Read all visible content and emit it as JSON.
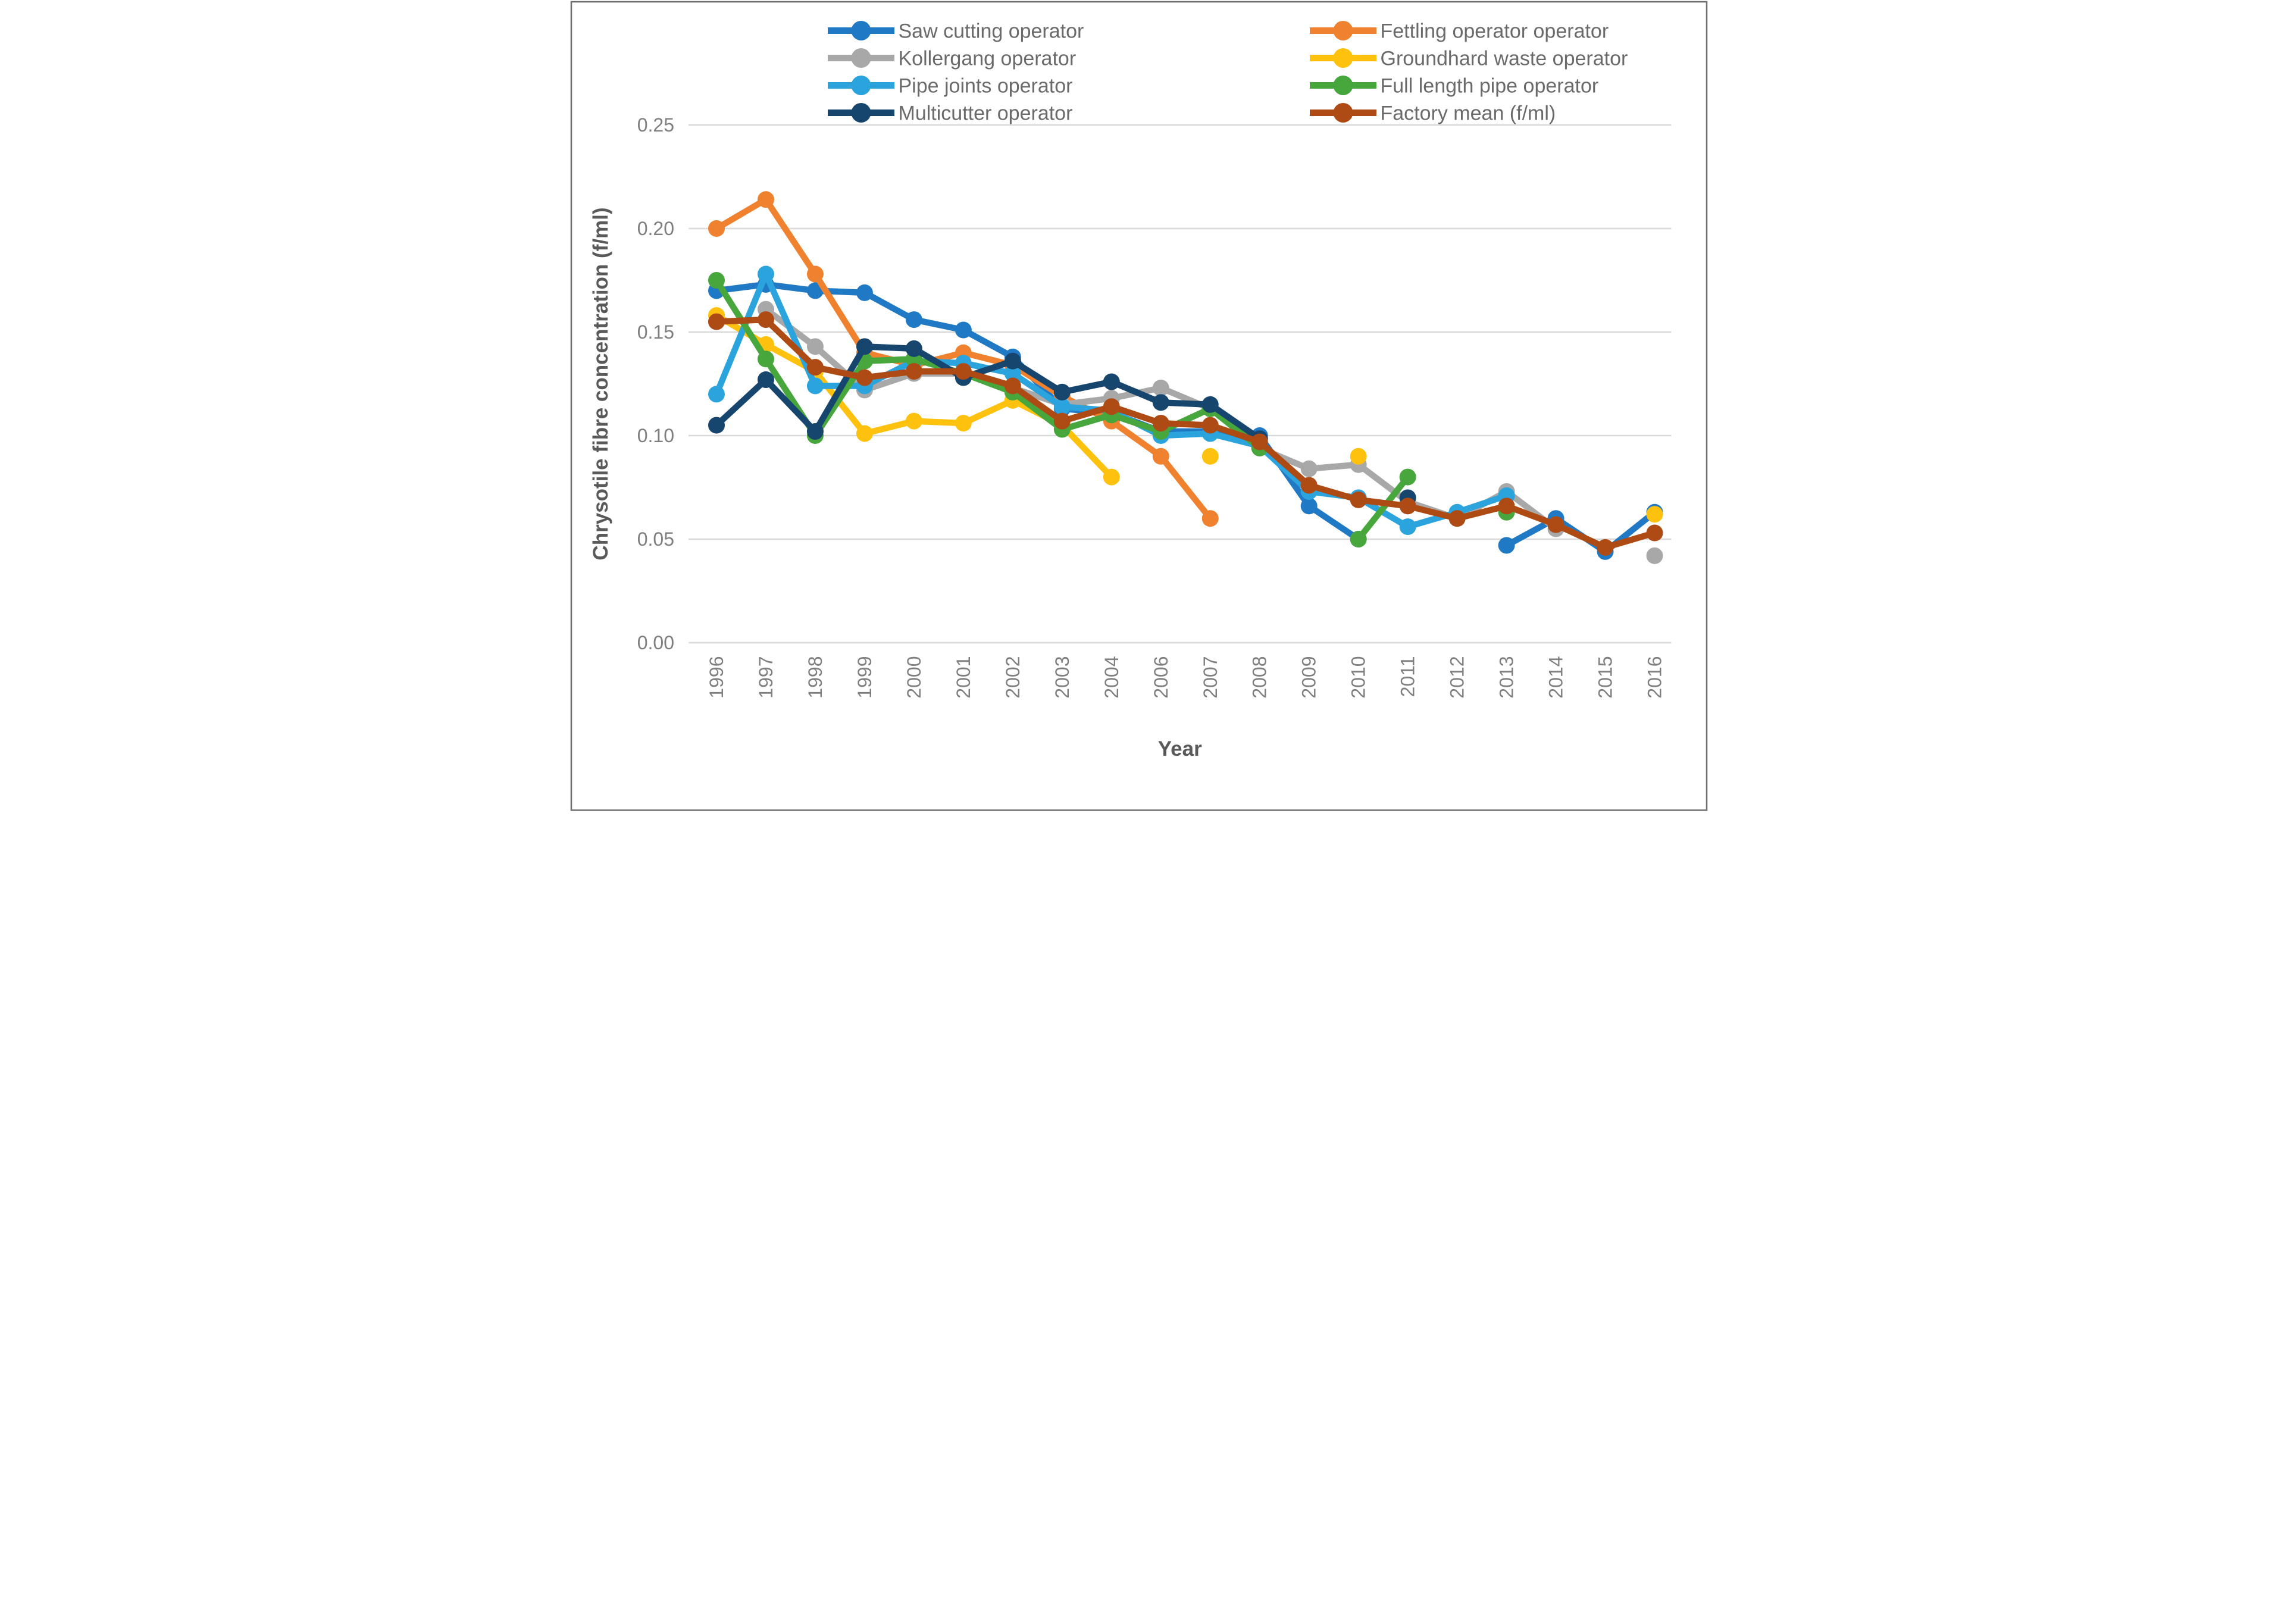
{
  "chart_data": {
    "type": "line",
    "title": "",
    "xlabel": "Year",
    "ylabel": "Chrysotile fibre concentration (f/ml)",
    "ylim": [
      0,
      0.25
    ],
    "ytick_labels": [
      "0.00",
      "0.05",
      "0.10",
      "0.15",
      "0.20",
      "0.25"
    ],
    "ytick_values": [
      0,
      0.05,
      0.1,
      0.15,
      0.2,
      0.25
    ],
    "grid": "horizontal",
    "legend_position": "top, two columns",
    "categories": [
      "1996",
      "1997",
      "1998",
      "1999",
      "2000",
      "2001",
      "2002",
      "2003",
      "2004",
      "2006",
      "2007",
      "2008",
      "2009",
      "2010",
      "2011",
      "2012",
      "2013",
      "2014",
      "2015",
      "2016"
    ],
    "series": [
      {
        "name": "Saw cutting operator",
        "key": "saw-cutting-operator",
        "color": "#2079C5",
        "values": [
          0.17,
          0.173,
          0.17,
          0.169,
          0.156,
          0.151,
          0.138,
          0.113,
          0.111,
          0.102,
          0.102,
          0.1,
          0.066,
          0.05,
          null,
          null,
          0.047,
          0.06,
          0.044,
          0.063
        ]
      },
      {
        "name": "Fettling operator operator",
        "key": "fettling-operator",
        "color": "#F0812E",
        "values": [
          0.2,
          0.214,
          0.178,
          0.14,
          0.134,
          0.14,
          0.134,
          0.119,
          0.107,
          0.09,
          0.06,
          null,
          null,
          null,
          null,
          null,
          null,
          null,
          null,
          null
        ]
      },
      {
        "name": "Kollergang operator",
        "key": "kollergang-operator",
        "color": "#A8A8A8",
        "values": [
          null,
          0.161,
          0.143,
          0.122,
          0.13,
          0.13,
          0.123,
          0.115,
          0.118,
          0.123,
          0.113,
          0.094,
          0.084,
          0.086,
          0.068,
          0.06,
          0.073,
          0.055,
          null,
          0.042
        ]
      },
      {
        "name": "Groundhard waste operator",
        "key": "groundhard-waste-operator",
        "color": "#FEC10D",
        "values": [
          0.158,
          0.144,
          0.131,
          0.101,
          0.107,
          0.106,
          0.117,
          0.105,
          0.08,
          null,
          0.09,
          null,
          null,
          0.09,
          null,
          null,
          null,
          null,
          null,
          0.062
        ]
      },
      {
        "name": "Pipe joints operator",
        "key": "pipe-joints-operator",
        "color": "#2BA3DC",
        "values": [
          0.12,
          0.178,
          0.124,
          0.124,
          0.136,
          0.135,
          0.13,
          0.114,
          0.112,
          0.1,
          0.101,
          0.095,
          0.073,
          0.07,
          0.056,
          0.063,
          0.071,
          null,
          null,
          null
        ]
      },
      {
        "name": "Full length pipe operator",
        "key": "full-length-pipe-operator",
        "color": "#47A63C",
        "values": [
          0.175,
          0.137,
          0.1,
          0.136,
          0.137,
          0.13,
          0.121,
          0.103,
          0.11,
          0.102,
          0.113,
          0.094,
          null,
          0.05,
          0.08,
          null,
          0.063,
          null,
          null,
          null
        ]
      },
      {
        "name": "Multicutter operator",
        "key": "multicutter-operator",
        "color": "#16456E",
        "values": [
          0.105,
          0.127,
          0.102,
          0.143,
          0.142,
          0.128,
          0.136,
          0.121,
          0.126,
          0.116,
          0.115,
          0.0985,
          null,
          null,
          0.07,
          null,
          null,
          null,
          null,
          null
        ]
      },
      {
        "name": "Factory mean (f/ml)",
        "key": "factory-mean",
        "color": "#AE4A13",
        "values": [
          0.155,
          0.156,
          0.133,
          0.128,
          0.131,
          0.131,
          0.124,
          0.107,
          0.114,
          0.106,
          0.105,
          0.097,
          0.076,
          0.069,
          0.066,
          0.06,
          0.066,
          0.057,
          0.046,
          0.053
        ]
      }
    ],
    "legend_columns": [
      [
        0,
        2,
        4,
        6
      ],
      [
        1,
        3,
        5,
        7
      ]
    ]
  },
  "style": {
    "gridline_color": "#D9D9D9",
    "tick_label_color": "#7F7F7F",
    "axis_title_color": "#595959",
    "legend_text_color": "#6A6A6A",
    "figure_border_color": "#6E6E6E",
    "background": "#FFFFFF"
  }
}
